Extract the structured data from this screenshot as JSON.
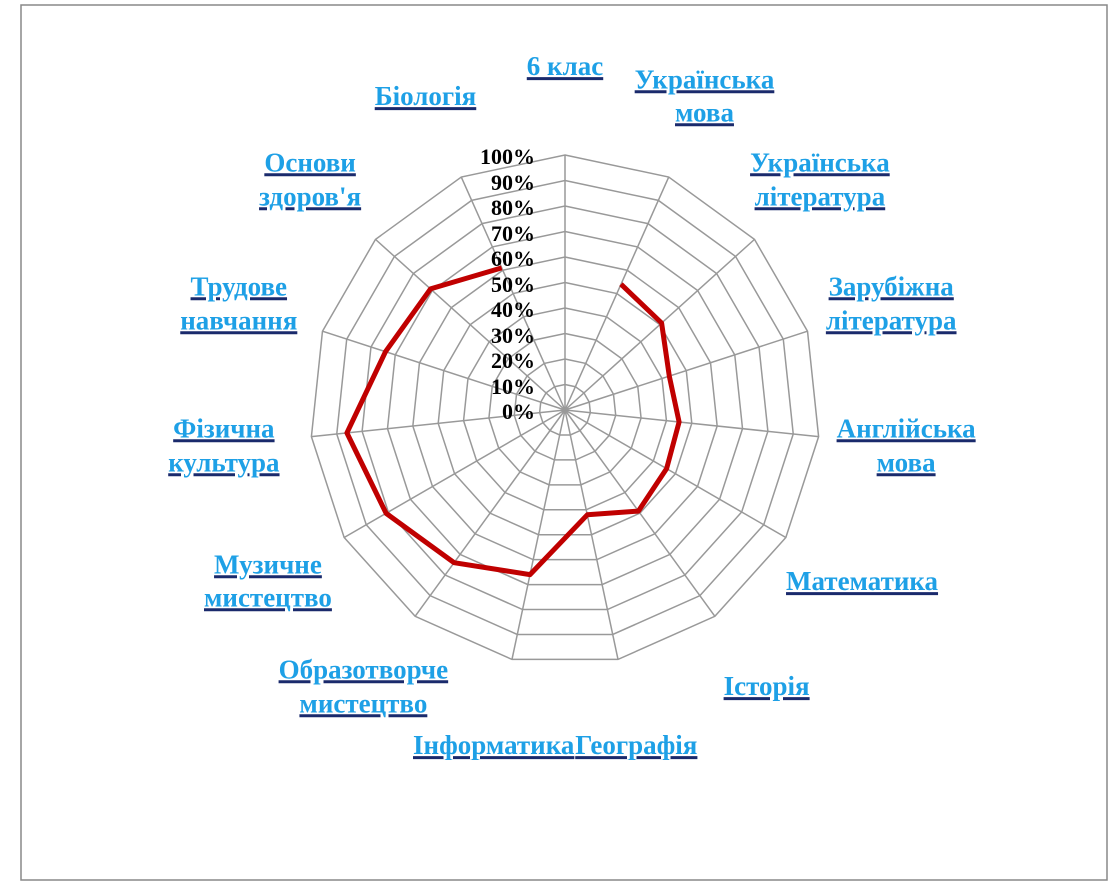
{
  "chart_data": {
    "type": "radar",
    "categories": [
      "6 клас",
      "Українська мова",
      "Українська література",
      "Зарубіжна література",
      "Англійська мова",
      "Математика",
      "Історія",
      "Географія",
      "Інформатика",
      "Образотворче мистецтво",
      "Музичне мистецтво",
      "Фізична культура",
      "Трудове навчання",
      "Основи здоров'я",
      "Біологія"
    ],
    "values": [
      null,
      54,
      51,
      43,
      45,
      46,
      49,
      42,
      66,
      74,
      81,
      86,
      74,
      71,
      61
    ],
    "color": "#c00000",
    "ylim": [
      0,
      100
    ],
    "yticks": [
      {
        "value": 0,
        "label": "0%"
      },
      {
        "value": 10,
        "label": "10%"
      },
      {
        "value": 20,
        "label": "20%"
      },
      {
        "value": 30,
        "label": "30%"
      },
      {
        "value": 40,
        "label": "40%"
      },
      {
        "value": 50,
        "label": "50%"
      },
      {
        "value": 60,
        "label": "60%"
      },
      {
        "value": 70,
        "label": "70%"
      },
      {
        "value": 80,
        "label": "80%"
      },
      {
        "value": 90,
        "label": "90%"
      },
      {
        "value": 100,
        "label": "100%"
      }
    ],
    "grid": true
  }
}
